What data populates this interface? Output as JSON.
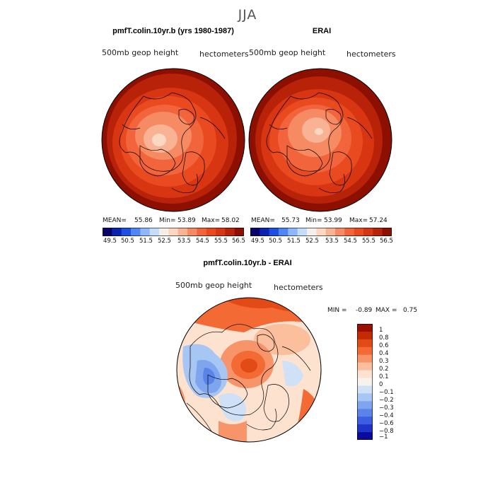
{
  "season": "JJA",
  "panels": [
    {
      "title": "pmfT.colin.10yr.b (yrs 1980-1987)",
      "variable": "500mb  geop  height",
      "units": "hectometers",
      "stats": {
        "mean_label": "MEAN=",
        "mean": "55.86",
        "min_label": "Min=",
        "min": "53.89",
        "max_label": "Max=",
        "max": "58.02"
      },
      "colorbar_ticks": [
        "49.5",
        "50.5",
        "51.5",
        "52.5",
        "53.5",
        "54.5",
        "55.5",
        "56.5"
      ]
    },
    {
      "title": "ERAI",
      "variable": "500mb  geop  height",
      "units": "hectometers",
      "stats": {
        "mean_label": "MEAN=",
        "mean": "55.73",
        "min_label": "Min=",
        "min": "53.99",
        "max_label": "Max=",
        "max": "57.24"
      },
      "colorbar_ticks": [
        "49.5",
        "50.5",
        "51.5",
        "52.5",
        "53.5",
        "54.5",
        "55.5",
        "56.5"
      ]
    }
  ],
  "difference": {
    "title": "pmfT.colin.10yr.b - ERAI",
    "variable": "500mb  geop  height",
    "units": "hectometers",
    "stats": {
      "min_label": "MIN =",
      "min": "-0.89",
      "max_label": "MAX =",
      "max": "0.75"
    },
    "colorbar_labels": [
      "1",
      "0.8",
      "0.6",
      "0.4",
      "0.3",
      "0.2",
      "0.1",
      "0",
      "−0.1",
      "−0.2",
      "−0.3",
      "−0.4",
      "−0.6",
      "−0.8",
      "−1"
    ]
  },
  "colors": {
    "abs_scale": [
      "#08006b",
      "#0a24b0",
      "#1d4fe0",
      "#4f86f5",
      "#8eb6fb",
      "#c6dcfb",
      "#f4efe8",
      "#fcd7c2",
      "#f9b394",
      "#f68a62",
      "#f2653c",
      "#e94a20",
      "#d83512",
      "#b82208",
      "#8c0f00"
    ],
    "diff_scale": [
      "#990f00",
      "#c42a05",
      "#e24a16",
      "#f36a35",
      "#f8946a",
      "#fbbf9e",
      "#fde2d0",
      "#f7f2ec",
      "#cfe0f7",
      "#a8c6f3",
      "#7ea5ee",
      "#5a84ea",
      "#3a5fe0",
      "#1f34c9",
      "#0a0a9c"
    ]
  }
}
